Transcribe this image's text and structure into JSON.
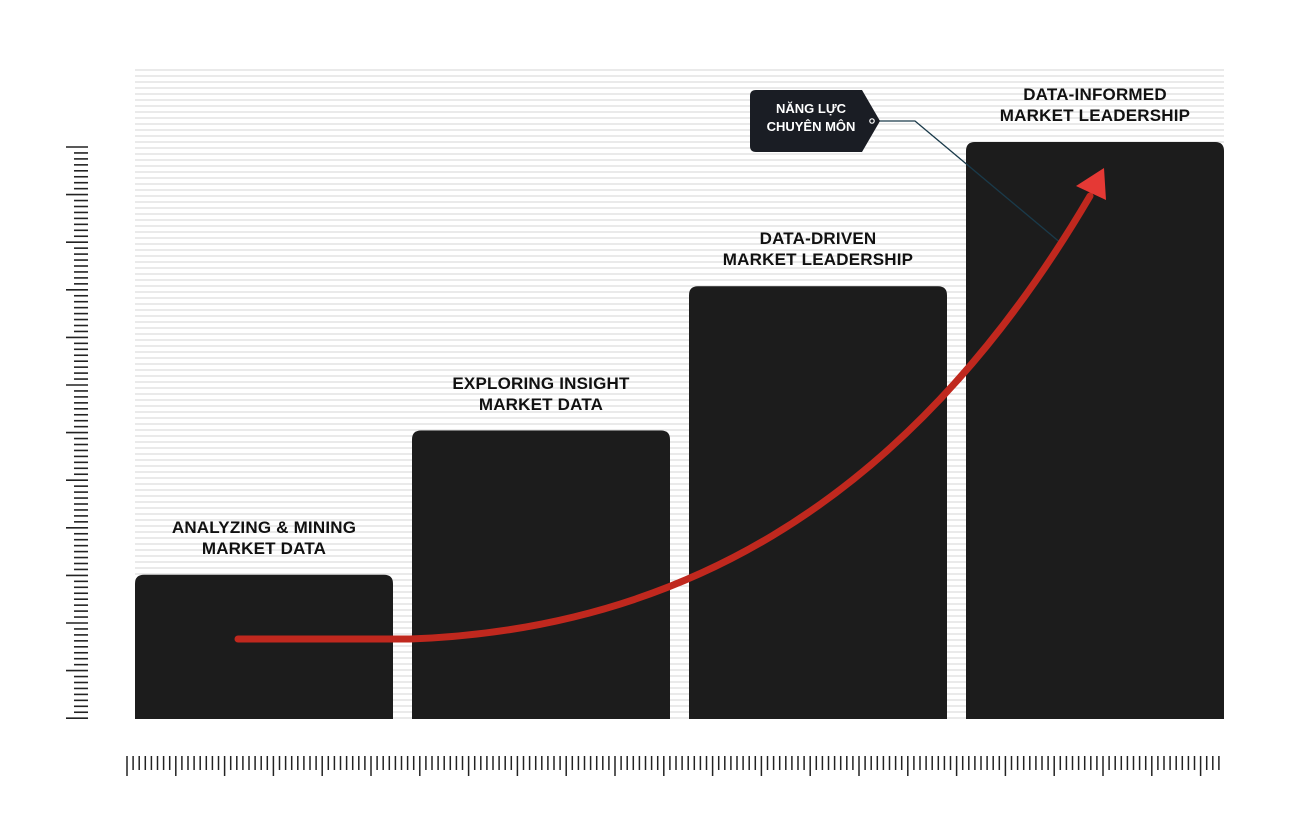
{
  "chart_data": {
    "type": "bar",
    "categories": [
      [
        "ANALYZING & MINING",
        "MARKET DATA"
      ],
      [
        "EXPLORING INSIGHT",
        "MARKET DATA"
      ],
      [
        "DATA-DRIVEN",
        "MARKET LEADERSHIP"
      ],
      [
        "DATA-INFORMED",
        "MARKET LEADERSHIP"
      ]
    ],
    "values": [
      1,
      2,
      3,
      4
    ],
    "ylim": [
      0,
      4
    ],
    "grid": true,
    "trend_arrow": true,
    "annotation": [
      "NĂNG LỰC",
      "CHUYÊN MÔN"
    ]
  },
  "colors": {
    "bar": "#1c1c1c",
    "arrow": "#c0281e",
    "arrow_head": "#e53935",
    "grid": "#d6d6d6",
    "tag": "#1a1d24",
    "ruler": "#222222"
  }
}
